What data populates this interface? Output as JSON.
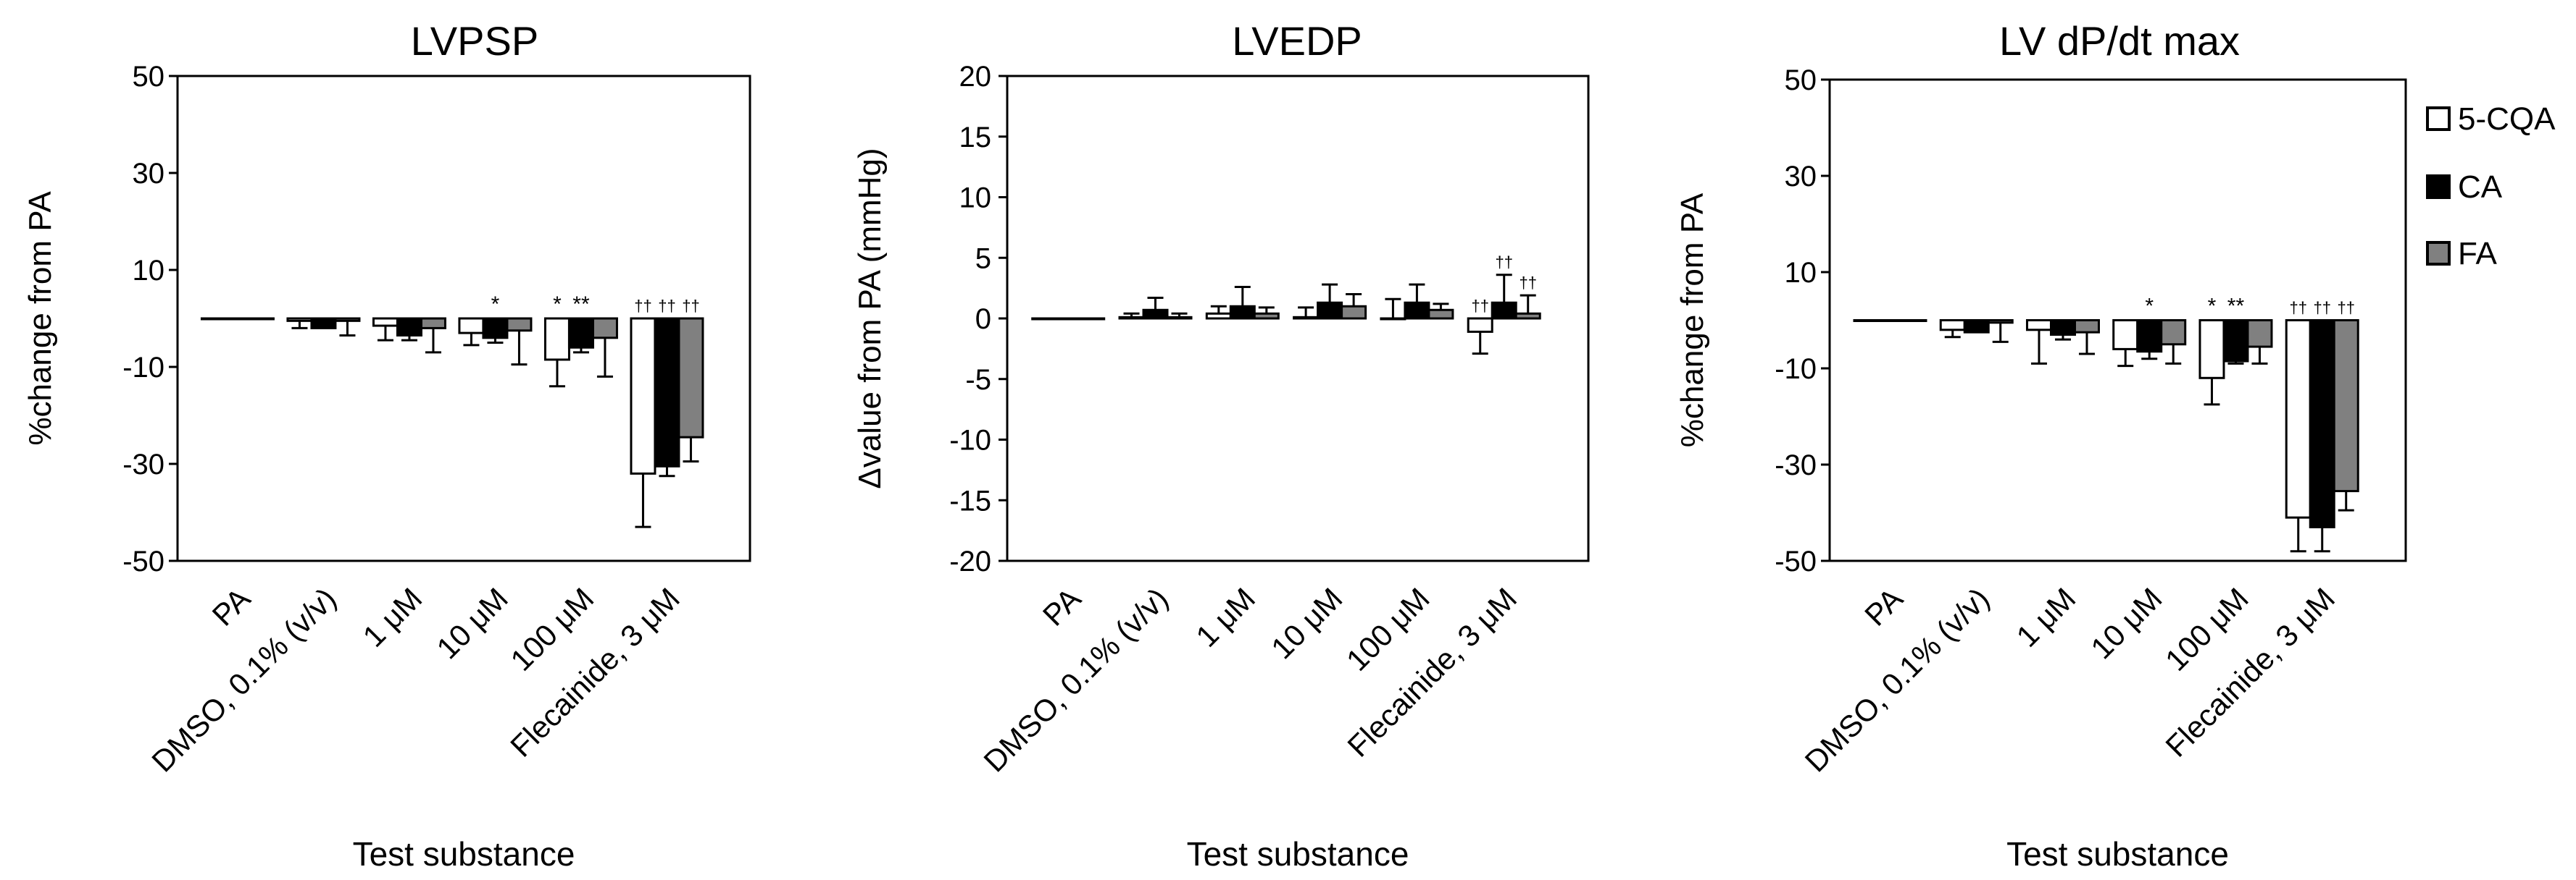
{
  "legend": {
    "entries": [
      {
        "label": "5-CQA",
        "color": "#ffffff"
      },
      {
        "label": "CA",
        "color": "#000000"
      },
      {
        "label": "FA",
        "color": "#808080"
      }
    ]
  },
  "categories": [
    "PA",
    "DMSO, 0.1% (v/v)",
    "1 μM",
    "10 μM",
    "100 μM",
    "Flecainide, 3 μM"
  ],
  "chart_data": [
    {
      "type": "bar",
      "title": "LVPSP",
      "xlabel": "Test substance",
      "ylabel": "%change from PA",
      "ylim": [
        -50,
        50
      ],
      "yticks": [
        50,
        30,
        10,
        -10,
        -30,
        -50
      ],
      "baseline": 0,
      "categories": [
        "PA",
        "DMSO, 0.1% (v/v)",
        "1 μM",
        "10 μM",
        "100 μM",
        "Flecainide, 3 μM"
      ],
      "series": [
        {
          "name": "5-CQA",
          "values": [
            0,
            -0.5,
            -1.5,
            -3,
            -8.5,
            -32
          ],
          "errors": [
            0,
            1.5,
            3,
            2.5,
            5.5,
            11
          ]
        },
        {
          "name": "CA",
          "values": [
            0,
            -2,
            -3.5,
            -4,
            -6,
            -30.5
          ],
          "errors": [
            0,
            0,
            1,
            1,
            1,
            2
          ]
        },
        {
          "name": "FA",
          "values": [
            0,
            -0.5,
            -2,
            -2.5,
            -4,
            -24.5
          ],
          "errors": [
            0,
            3,
            5,
            7,
            8,
            5
          ]
        }
      ],
      "annotations": [
        {
          "category": 3,
          "series": 1,
          "text": "*"
        },
        {
          "category": 4,
          "series": 0,
          "text": "*"
        },
        {
          "category": 4,
          "series": 1,
          "text": "**"
        },
        {
          "category": 5,
          "series": 0,
          "text": "††"
        },
        {
          "category": 5,
          "series": 1,
          "text": "††"
        },
        {
          "category": 5,
          "series": 2,
          "text": "††"
        }
      ]
    },
    {
      "type": "bar",
      "title": "LVEDP",
      "xlabel": "Test substance",
      "ylabel": "Δvalue from PA (mmHg)",
      "ylim": [
        -20,
        20
      ],
      "yticks": [
        20,
        15,
        10,
        5,
        0,
        -5,
        -10,
        -15,
        -20
      ],
      "baseline": 0,
      "categories": [
        "PA",
        "DMSO, 0.1% (v/v)",
        "1 μM",
        "10 μM",
        "100 μM",
        "Flecainide, 3 μM"
      ],
      "series": [
        {
          "name": "5-CQA",
          "values": [
            0,
            0.1,
            0.4,
            0.1,
            0,
            -1.1
          ],
          "errors": [
            0,
            0.3,
            0.6,
            0.8,
            1.6,
            1.8
          ]
        },
        {
          "name": "CA",
          "values": [
            0,
            0.7,
            1,
            1.3,
            1.3,
            1.3
          ],
          "errors": [
            0,
            1,
            1.6,
            1.5,
            1.5,
            2.3
          ]
        },
        {
          "name": "FA",
          "values": [
            0,
            0.1,
            0.4,
            1,
            0.7,
            0.4
          ],
          "errors": [
            0,
            0.3,
            0.5,
            1,
            0.5,
            1.5
          ]
        }
      ],
      "annotations": [
        {
          "category": 5,
          "series": 0,
          "text": "††"
        },
        {
          "category": 5,
          "series": 1,
          "text": "††"
        },
        {
          "category": 5,
          "series": 2,
          "text": "††"
        }
      ]
    },
    {
      "type": "bar",
      "title": "LV dP/dt max",
      "xlabel": "Test substance",
      "ylabel": "%change from PA",
      "ylim": [
        -50,
        50
      ],
      "yticks": [
        50,
        30,
        10,
        -10,
        -30,
        -50
      ],
      "baseline": 0,
      "categories": [
        "PA",
        "DMSO, 0.1% (v/v)",
        "1 μM",
        "10 μM",
        "100 μM",
        "Flecainide, 3 μM"
      ],
      "series": [
        {
          "name": "5-CQA",
          "values": [
            0,
            -2,
            -2,
            -6,
            -12,
            -41
          ],
          "errors": [
            0,
            1.5,
            7,
            3.5,
            5.5,
            7
          ]
        },
        {
          "name": "CA",
          "values": [
            0,
            -2.5,
            -3,
            -6.5,
            -8.5,
            -43
          ],
          "errors": [
            0,
            0,
            1,
            1.5,
            0.5,
            5
          ]
        },
        {
          "name": "FA",
          "values": [
            0,
            -0.5,
            -2.5,
            -5,
            -5.5,
            -35.5
          ],
          "errors": [
            0,
            4,
            4.5,
            4,
            3.5,
            4
          ]
        }
      ],
      "annotations": [
        {
          "category": 3,
          "series": 1,
          "text": "*"
        },
        {
          "category": 4,
          "series": 0,
          "text": "*"
        },
        {
          "category": 4,
          "series": 1,
          "text": "**"
        },
        {
          "category": 5,
          "series": 0,
          "text": "††"
        },
        {
          "category": 5,
          "series": 1,
          "text": "††"
        },
        {
          "category": 5,
          "series": 2,
          "text": "††"
        }
      ]
    }
  ]
}
